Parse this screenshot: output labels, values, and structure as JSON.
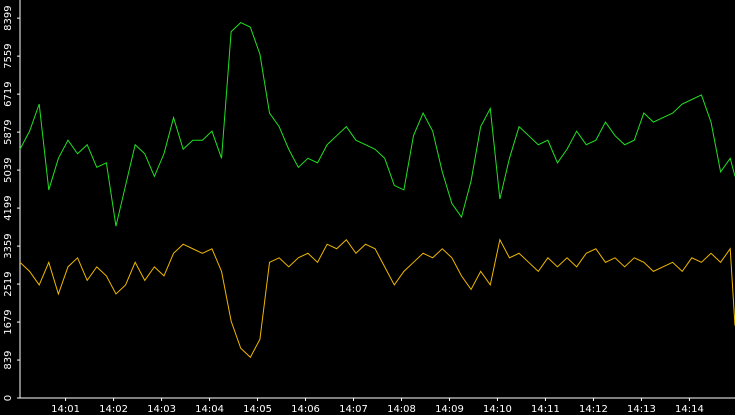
{
  "chart_data": {
    "type": "line",
    "x": [
      0.05,
      0.25,
      0.45,
      0.65,
      0.85,
      1.05,
      1.25,
      1.45,
      1.65,
      1.85,
      2.05,
      2.25,
      2.45,
      2.65,
      2.85,
      3.05,
      3.25,
      3.45,
      3.65,
      3.85,
      4.05,
      4.25,
      4.45,
      4.65,
      4.85,
      5.05,
      5.25,
      5.45,
      5.65,
      5.85,
      6.05,
      6.25,
      6.45,
      6.65,
      6.85,
      7.05,
      7.25,
      7.45,
      7.65,
      7.85,
      8.05,
      8.25,
      8.45,
      8.65,
      8.85,
      9.05,
      9.25,
      9.45,
      9.65,
      9.85,
      10.05,
      10.25,
      10.45,
      10.65,
      10.85,
      11.05,
      11.25,
      11.45,
      11.65,
      11.85,
      12.05,
      12.25,
      12.45,
      12.65,
      12.85,
      13.05,
      13.25,
      13.45,
      13.65,
      13.85,
      14.05,
      14.25,
      14.45,
      14.65,
      14.85,
      14.95
    ],
    "series": [
      {
        "color": "#22e022",
        "values": [
          5500,
          5900,
          6500,
          4600,
          5300,
          5700,
          5400,
          5600,
          5100,
          5200,
          3800,
          4700,
          5600,
          5400,
          4900,
          5400,
          6200,
          5500,
          5700,
          5700,
          5900,
          5300,
          8100,
          8300,
          8200,
          7600,
          6300,
          6000,
          5500,
          5100,
          5300,
          5200,
          5600,
          5800,
          6000,
          5700,
          5600,
          5500,
          5300,
          4700,
          4600,
          5800,
          6300,
          5900,
          5000,
          4300,
          4000,
          4800,
          6000,
          6400,
          4400,
          5300,
          6000,
          5800,
          5600,
          5700,
          5200,
          5500,
          5900,
          5600,
          5700,
          6100,
          5800,
          5600,
          5700,
          6300,
          6100,
          6200,
          6300,
          6500,
          6600,
          6700,
          6100,
          5000,
          5300,
          4900
        ]
      },
      {
        "color": "#f0b800",
        "values": [
          3000,
          2800,
          2500,
          3000,
          2300,
          2900,
          3100,
          2600,
          2900,
          2700,
          2300,
          2500,
          3000,
          2600,
          2900,
          2700,
          3200,
          3400,
          3300,
          3200,
          3300,
          2800,
          1700,
          1100,
          900,
          1300,
          3000,
          3100,
          2900,
          3100,
          3200,
          3000,
          3400,
          3300,
          3500,
          3200,
          3400,
          3300,
          2900,
          2500,
          2800,
          3000,
          3200,
          3100,
          3300,
          3100,
          2700,
          2400,
          2800,
          2500,
          3500,
          3100,
          3200,
          3000,
          2800,
          3100,
          2900,
          3100,
          2900,
          3200,
          3300,
          3000,
          3100,
          2900,
          3100,
          3000,
          2800,
          2900,
          3000,
          2800,
          3100,
          3000,
          3200,
          3000,
          3300,
          1600
        ]
      }
    ],
    "xlim": [
      0.05,
      14.95
    ],
    "xticks": [
      {
        "value": 1,
        "label": "14:01"
      },
      {
        "value": 2,
        "label": "14:02"
      },
      {
        "value": 3,
        "label": "14:03"
      },
      {
        "value": 4,
        "label": "14:04"
      },
      {
        "value": 5,
        "label": "14:05"
      },
      {
        "value": 6,
        "label": "14:06"
      },
      {
        "value": 7,
        "label": "14:07"
      },
      {
        "value": 8,
        "label": "14:08"
      },
      {
        "value": 9,
        "label": "14:09"
      },
      {
        "value": 10,
        "label": "14:10"
      },
      {
        "value": 11,
        "label": "14:11"
      },
      {
        "value": 12,
        "label": "14:12"
      },
      {
        "value": 13,
        "label": "14:13"
      },
      {
        "value": 14,
        "label": "14:14"
      }
    ],
    "ylim": [
      0,
      8800
    ],
    "yticks": [
      0,
      839,
      1679,
      2519,
      3359,
      4199,
      5039,
      5879,
      6719,
      7559,
      8399
    ]
  }
}
